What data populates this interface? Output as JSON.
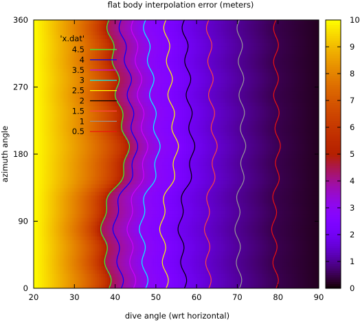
{
  "chart_data": {
    "type": "heatmap",
    "title": "flat body interpolation error (meters)",
    "xlabel": "dive angle (wrt horizontal)",
    "ylabel": "azimuth angle",
    "xlim": [
      20,
      90
    ],
    "ylim": [
      0,
      360
    ],
    "x_ticks": [
      "20",
      "30",
      "40",
      "50",
      "60",
      "70",
      "80",
      "90"
    ],
    "y_ticks": [
      "0",
      "90",
      "180",
      "270",
      "360"
    ],
    "colorbar": {
      "range": [
        0,
        10
      ],
      "ticks": [
        "0",
        "1",
        "2",
        "3",
        "4",
        "5",
        "6",
        "7",
        "8",
        "9",
        "10"
      ],
      "colormap": "gnuplot-pm3d-7-5-15"
    },
    "contour_title": "'x.dat'",
    "contours": [
      {
        "level": "4.5",
        "color": "#33ff33",
        "x_at_0": 38.5,
        "x_at_90": 37.0,
        "x_at_180": 43.0,
        "x_at_270": 40.5
      },
      {
        "level": "4",
        "color": "#0000ff",
        "x_at_0": 41.5,
        "x_at_90": 40.0,
        "x_at_180": 45.0,
        "x_at_270": 43.5
      },
      {
        "level": "3.5",
        "color": "#cc00ff",
        "x_at_0": 44.5,
        "x_at_90": 43.5,
        "x_at_180": 47.5,
        "x_at_270": 46.0
      },
      {
        "level": "3",
        "color": "#00ffff",
        "x_at_0": 47.5,
        "x_at_90": 46.5,
        "x_at_180": 50.5,
        "x_at_270": 49.0
      },
      {
        "level": "2.5",
        "color": "#ffff00",
        "x_at_0": 52.5,
        "x_at_90": 51.5,
        "x_at_180": 55.0,
        "x_at_270": 53.5
      },
      {
        "level": "2",
        "color": "#000000",
        "x_at_0": 57.0,
        "x_at_90": 56.0,
        "x_at_180": 59.0,
        "x_at_270": 58.0
      },
      {
        "level": "1.5",
        "color": "#ff4444",
        "x_at_0": 63.0,
        "x_at_90": 62.5,
        "x_at_180": 64.5,
        "x_at_270": 63.5
      },
      {
        "level": "1",
        "color": "#999999",
        "x_at_0": 70.5,
        "x_at_90": 70.0,
        "x_at_180": 71.5,
        "x_at_270": 71.0
      },
      {
        "level": "0.5",
        "color": "#ee1111",
        "x_at_0": 79.5,
        "x_at_90": 79.0,
        "x_at_180": 80.0,
        "x_at_270": 79.5
      }
    ],
    "surface": {
      "value_at_x20": 10,
      "value_at_x90": 0.2,
      "clip_above": 10
    }
  }
}
